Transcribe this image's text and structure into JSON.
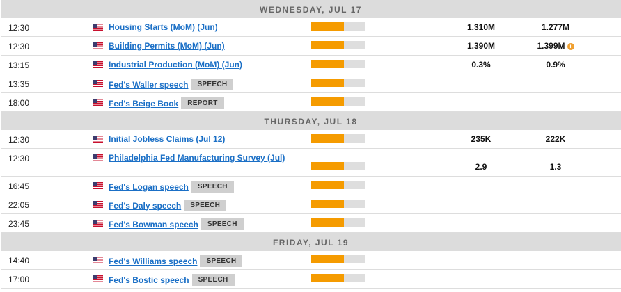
{
  "colors": {
    "impact_fill": "#f59b00",
    "link": "#1a6fc6",
    "header_bg": "#dcdcdc"
  },
  "days": [
    {
      "label": "WEDNESDAY, JUL 17",
      "events": [
        {
          "time": "12:30",
          "country_flag": "us-flag-icon",
          "name": "Housing Starts (MoM) (Jun)",
          "impact": 0.6,
          "actual": "1.310M",
          "consensus": "1.277M"
        },
        {
          "time": "12:30",
          "country_flag": "us-flag-icon",
          "name": "Building Permits (MoM) (Jun)",
          "impact": 0.6,
          "actual": "1.390M",
          "consensus": "1.399M",
          "consensus_info_icon": "info-icon"
        },
        {
          "time": "13:15",
          "country_flag": "us-flag-icon",
          "name": "Industrial Production (MoM) (Jun)",
          "impact": 0.6,
          "actual": "0.3%",
          "consensus": "0.9%"
        },
        {
          "time": "13:35",
          "country_flag": "us-flag-icon",
          "name": "Fed's Waller speech",
          "tag": "SPEECH",
          "impact": 0.6
        },
        {
          "time": "18:00",
          "country_flag": "us-flag-icon",
          "name": "Fed's Beige Book",
          "tag": "REPORT",
          "impact": 0.6
        }
      ]
    },
    {
      "label": "THURSDAY, JUL 18",
      "events": [
        {
          "time": "12:30",
          "country_flag": "us-flag-icon",
          "name": "Initial Jobless Claims (Jul 12)",
          "impact": 0.6,
          "actual": "235K",
          "consensus": "222K"
        },
        {
          "time": "12:30",
          "country_flag": "us-flag-icon",
          "name": "Philadelphia Fed Manufacturing Survey (Jul)",
          "impact": 0.6,
          "actual": "2.9",
          "consensus": "1.3",
          "tall": true
        },
        {
          "time": "16:45",
          "country_flag": "us-flag-icon",
          "name": "Fed's Logan speech",
          "tag": "SPEECH",
          "impact": 0.6
        },
        {
          "time": "22:05",
          "country_flag": "us-flag-icon",
          "name": "Fed's Daly speech",
          "tag": "SPEECH",
          "impact": 0.6
        },
        {
          "time": "23:45",
          "country_flag": "us-flag-icon",
          "name": "Fed's Bowman speech",
          "tag": "SPEECH",
          "impact": 0.6
        }
      ]
    },
    {
      "label": "FRIDAY, JUL 19",
      "events": [
        {
          "time": "14:40",
          "country_flag": "us-flag-icon",
          "name": "Fed's Williams speech",
          "tag": "SPEECH",
          "impact": 0.6
        },
        {
          "time": "17:00",
          "country_flag": "us-flag-icon",
          "name": "Fed's Bostic speech",
          "tag": "SPEECH",
          "impact": 0.6
        }
      ]
    }
  ]
}
